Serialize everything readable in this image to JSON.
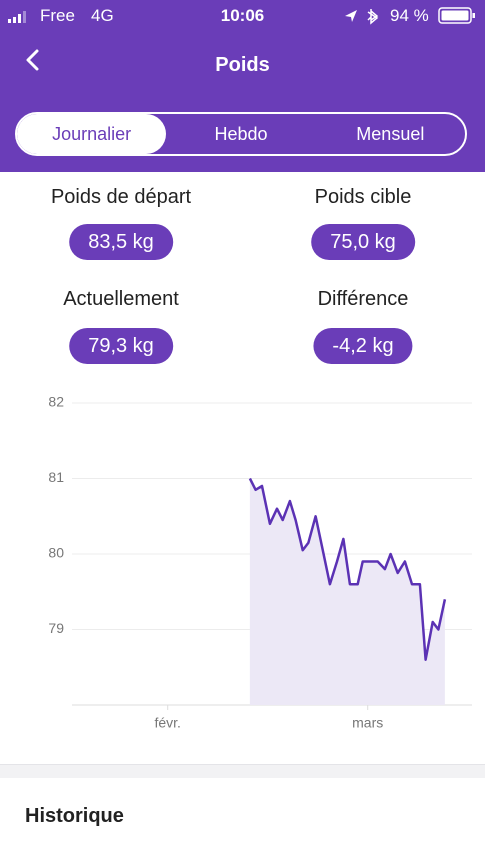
{
  "status_bar": {
    "carrier": "Free",
    "network": "4G",
    "time": "10:06",
    "battery": "94 %"
  },
  "header": {
    "title": "Poids"
  },
  "tabs": [
    "Journalier",
    "Hebdo",
    "Mensuel"
  ],
  "selected_tab": 0,
  "stats": [
    {
      "label": "Poids de départ",
      "value": "83,5 kg"
    },
    {
      "label": "Poids cible",
      "value": "75,0 kg"
    },
    {
      "label": "Actuellement",
      "value": "79,3 kg"
    },
    {
      "label": "Différence",
      "value": "-4,2 kg"
    }
  ],
  "chart_data": {
    "type": "line",
    "color": "#5b32b4",
    "fill": "#ece8f6",
    "grid": true,
    "x": [
      11.5,
      12.3,
      13.2,
      14.3,
      15.3,
      16.1,
      17.1,
      17.9,
      18.9,
      19.7,
      20.7,
      21.6,
      22.7,
      23.7,
      24.6,
      25.5,
      26.6,
      27.3,
      29.4,
      30.4,
      31.2,
      32.2,
      33.2,
      34.2,
      35.3,
      36.1,
      37.1,
      37.9,
      38.8
    ],
    "values": [
      81.0,
      80.85,
      80.9,
      80.4,
      80.6,
      80.45,
      80.7,
      80.45,
      80.05,
      80.15,
      80.5,
      80.1,
      79.6,
      79.9,
      80.2,
      79.6,
      79.6,
      79.9,
      79.9,
      79.8,
      80.0,
      79.75,
      79.9,
      79.6,
      79.6,
      78.6,
      79.1,
      79.0,
      79.4
    ],
    "xlim": [
      -13.4,
      42.6
    ],
    "ylim": [
      78,
      82
    ],
    "xticks": [
      {
        "value": 0,
        "label": "févr."
      },
      {
        "value": 28,
        "label": "mars"
      }
    ],
    "yticks": [
      79,
      80,
      81,
      82
    ]
  },
  "section_title": "Historique"
}
